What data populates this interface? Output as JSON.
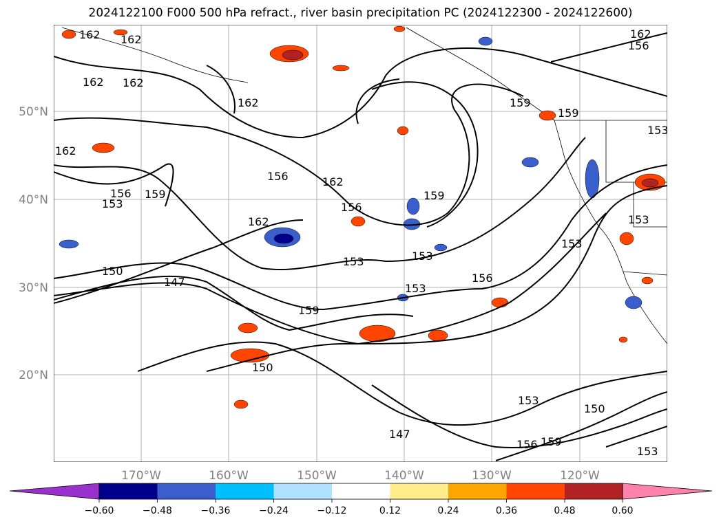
{
  "title": "2024122100 F000 500 hPa refract., river basin precipitation PC (2024122300 - 2024122600)",
  "map": {
    "lat_ticks": [
      "50°N",
      "40°N",
      "30°N",
      "20°N"
    ],
    "lon_ticks": [
      "170°W",
      "160°W",
      "150°W",
      "140°W",
      "130°W",
      "120°W"
    ],
    "contour_labels": [
      "162",
      "162",
      "162",
      "162",
      "162",
      "162",
      "162",
      "162",
      "162",
      "159",
      "159",
      "159",
      "159",
      "159",
      "159",
      "156",
      "156",
      "156",
      "156",
      "156",
      "156",
      "153",
      "153",
      "153",
      "153",
      "153",
      "153",
      "153",
      "153",
      "153",
      "150",
      "150",
      "150",
      "147",
      "147"
    ]
  },
  "colorbar": {
    "ticks": [
      "−0.60",
      "−0.48",
      "−0.36",
      "−0.24",
      "−0.12",
      "0.12",
      "0.24",
      "0.36",
      "0.48",
      "0.60"
    ],
    "colors": [
      "#9932cc",
      "#00008b",
      "#3a5fcd",
      "#00bfff",
      "#b0e2ff",
      "#ffffff",
      "#ffec8b",
      "#ffa500",
      "#ff4500",
      "#b22222",
      "#ff82ab"
    ]
  }
}
